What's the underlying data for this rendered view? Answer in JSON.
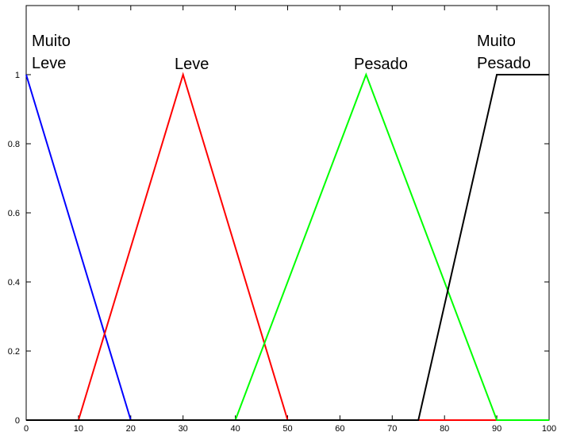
{
  "chart_data": {
    "type": "line",
    "title": "",
    "xlabel": "",
    "ylabel": "",
    "xlim": [
      0,
      100
    ],
    "ylim": [
      0,
      1.2
    ],
    "x_ticks": [
      0,
      10,
      20,
      30,
      40,
      50,
      60,
      70,
      80,
      90,
      100
    ],
    "y_ticks": [
      0,
      0.2,
      0.4,
      0.6,
      0.8,
      1
    ],
    "x_tick_labels": [
      "0",
      "10",
      "20",
      "30",
      "40",
      "50",
      "60",
      "70",
      "80",
      "90",
      "100"
    ],
    "y_tick_labels": [
      "0",
      "0.2",
      "0.4",
      "0.6",
      "0.8",
      "1"
    ],
    "grid": false,
    "legend": "none",
    "series": [
      {
        "label_lines": [
          "Muito",
          "Leve"
        ],
        "color": "#0000ff",
        "x": [
          0,
          20,
          100
        ],
        "y": [
          1,
          0,
          0
        ]
      },
      {
        "label_lines": [
          "Leve"
        ],
        "color": "#ff0000",
        "x": [
          0,
          10,
          30,
          50,
          100
        ],
        "y": [
          0,
          0,
          1,
          0,
          0
        ]
      },
      {
        "label_lines": [
          "Pesado"
        ],
        "color": "#00ff00",
        "x": [
          0,
          40,
          65,
          90,
          100
        ],
        "y": [
          0,
          0,
          1,
          0,
          0
        ]
      },
      {
        "label_lines": [
          "Muito",
          "Pesado"
        ],
        "color": "#000000",
        "x": [
          0,
          75,
          90,
          100
        ],
        "y": [
          0,
          0,
          1,
          1
        ]
      }
    ]
  }
}
